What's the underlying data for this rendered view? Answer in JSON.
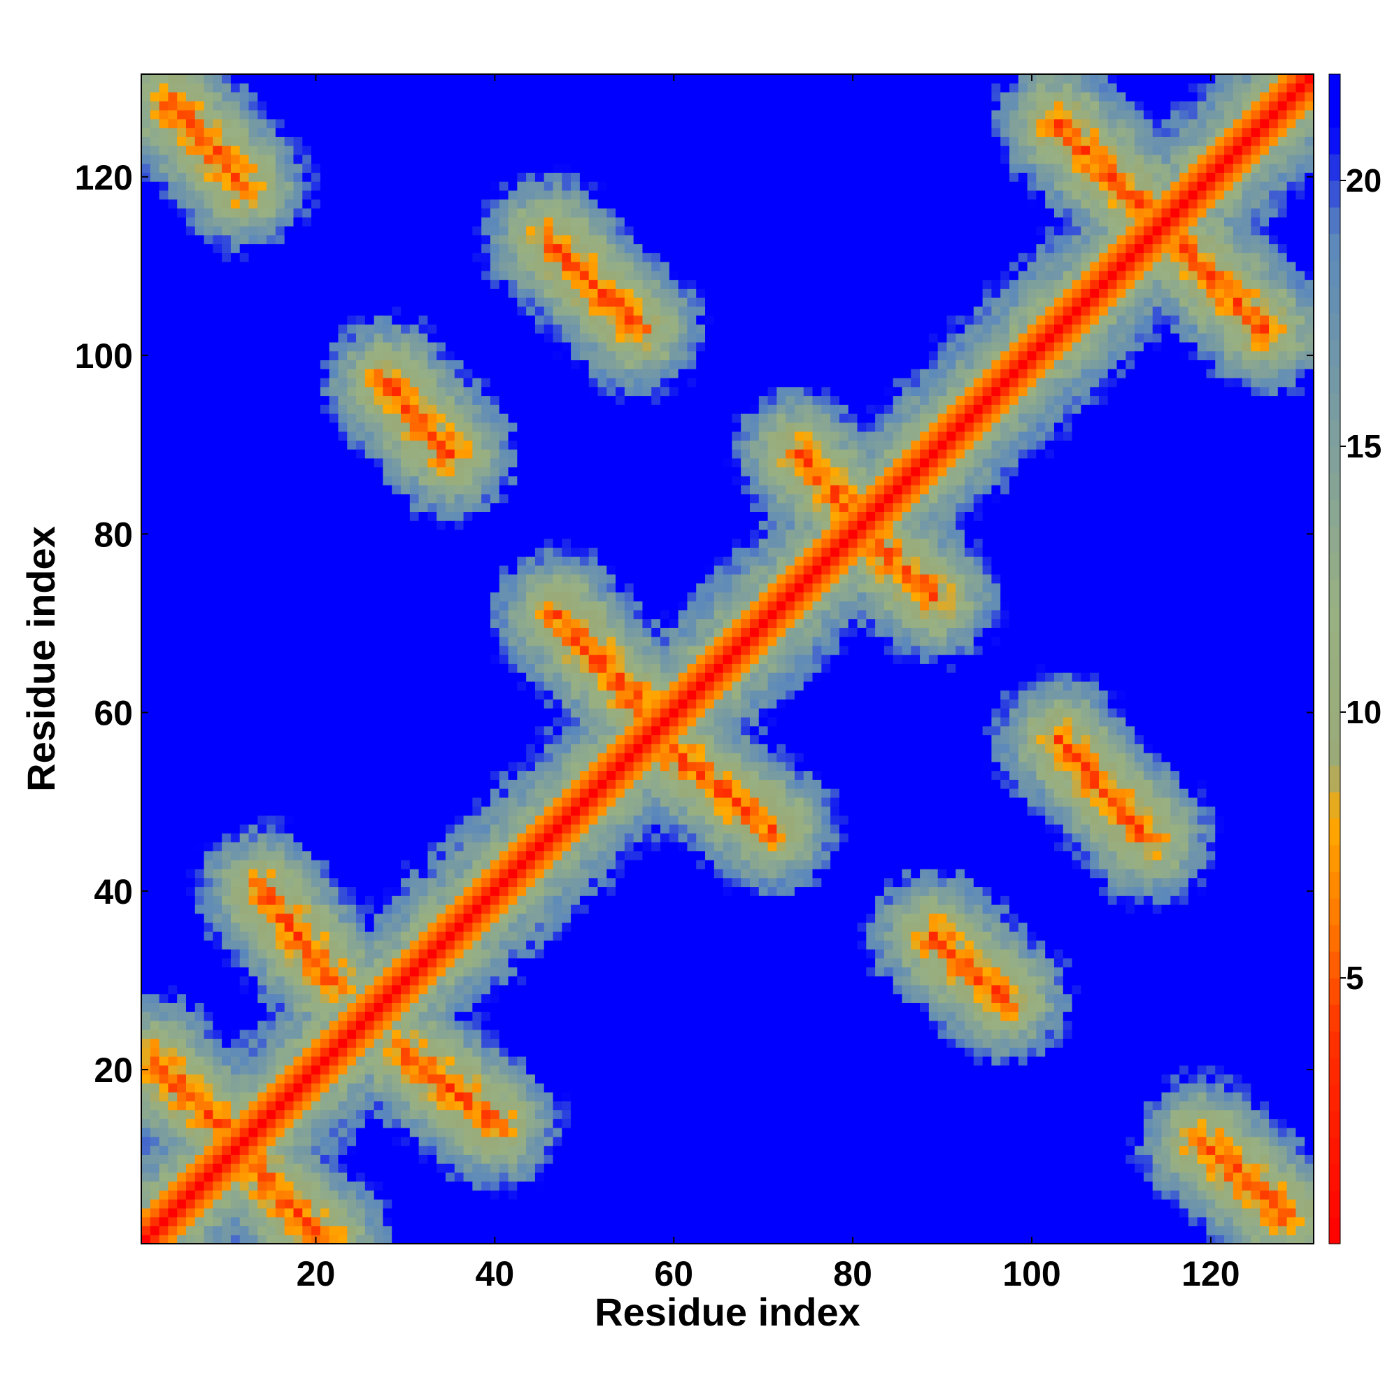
{
  "chart_data": {
    "type": "heatmap",
    "title": "",
    "xlabel": "Residue index",
    "ylabel": "Residue index",
    "n_residues": 131,
    "xlim": [
      1,
      131
    ],
    "ylim": [
      1,
      131
    ],
    "x_ticks": [
      20,
      40,
      60,
      80,
      100,
      120
    ],
    "y_ticks": [
      20,
      40,
      60,
      80,
      100,
      120
    ],
    "colorbar": {
      "min": 0,
      "max": 22,
      "ticks": [
        5,
        10,
        15,
        20
      ],
      "stops": [
        {
          "value": 0,
          "color": "#ff0000"
        },
        {
          "value": 4,
          "color": "#ff3300"
        },
        {
          "value": 6,
          "color": "#ff7700"
        },
        {
          "value": 8,
          "color": "#ffaa00"
        },
        {
          "value": 9,
          "color": "#9aaa78"
        },
        {
          "value": 12,
          "color": "#98b083"
        },
        {
          "value": 15,
          "color": "#7fa09c"
        },
        {
          "value": 19,
          "color": "#5b88bc"
        },
        {
          "value": 21,
          "color": "#0000ff"
        }
      ]
    },
    "diagonal": {
      "distance_on_diagonal": 3.8
    },
    "contact_bands": [
      {
        "i_start": 2,
        "j_start": 21,
        "i_end": 12,
        "j_end": 11,
        "note": "anti-parallel strand pair"
      },
      {
        "i_start": 12,
        "j_start": 10,
        "i_end": 21,
        "j_end": 1,
        "note": "anti-parallel strand pair"
      },
      {
        "i_start": 14,
        "j_start": 40,
        "i_end": 22,
        "j_end": 30,
        "note": "anti-parallel strand pair"
      },
      {
        "i_start": 30,
        "j_start": 22,
        "i_end": 40,
        "j_end": 14,
        "note": "anti-parallel strand pair"
      },
      {
        "i_start": 4,
        "j_start": 128,
        "i_end": 12,
        "j_end": 119,
        "note": "contact band"
      },
      {
        "i_start": 28,
        "j_start": 97,
        "i_end": 35,
        "j_end": 89,
        "note": "contact band"
      },
      {
        "i_start": 46,
        "j_start": 113,
        "i_end": 56,
        "j_end": 103,
        "note": "contact band"
      },
      {
        "i_start": 47,
        "j_start": 71,
        "i_end": 57,
        "j_end": 60,
        "note": "contact band"
      },
      {
        "i_start": 58,
        "j_start": 57,
        "i_end": 71,
        "j_end": 47,
        "note": "contact band"
      },
      {
        "i_start": 74,
        "j_start": 89,
        "i_end": 82,
        "j_end": 80,
        "note": "contact band"
      },
      {
        "i_start": 81,
        "j_start": 80,
        "i_end": 89,
        "j_end": 73,
        "note": "contact band"
      },
      {
        "i_start": 89,
        "j_start": 35,
        "i_end": 97,
        "j_end": 28,
        "note": "contact band"
      },
      {
        "i_start": 103,
        "j_start": 57,
        "i_end": 113,
        "j_end": 46,
        "note": "contact band"
      },
      {
        "i_start": 103,
        "j_start": 126,
        "i_end": 114,
        "j_end": 115,
        "note": "contact band"
      },
      {
        "i_start": 115,
        "j_start": 114,
        "i_end": 126,
        "j_end": 103,
        "note": "contact band"
      },
      {
        "i_start": 119,
        "j_start": 12,
        "i_end": 128,
        "j_end": 4,
        "note": "contact band"
      }
    ]
  }
}
